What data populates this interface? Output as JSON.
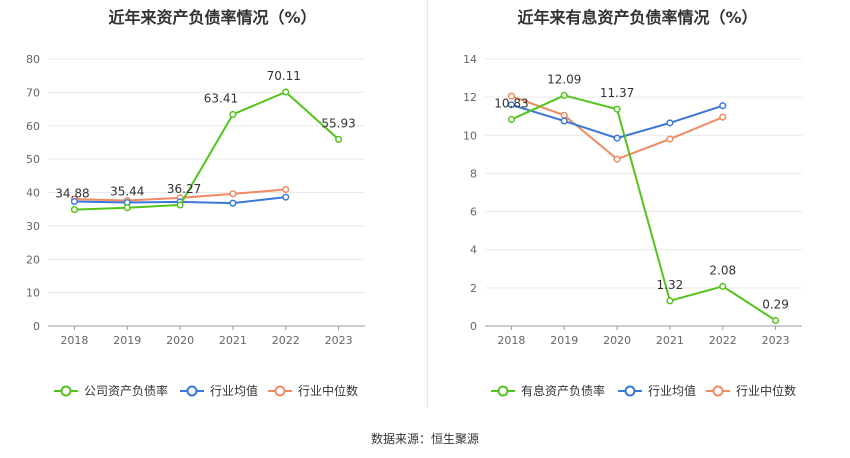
{
  "source_label": "数据来源：恒生聚源",
  "chart_data": [
    {
      "type": "line",
      "title": "近年来资产负债率情况（%）",
      "categories": [
        "2018",
        "2019",
        "2020",
        "2021",
        "2022",
        "2023"
      ],
      "ylim": [
        0,
        80
      ],
      "yticks": [
        0,
        10,
        20,
        30,
        40,
        50,
        60,
        70,
        80
      ],
      "grid": true,
      "legend_position": "bottom",
      "series": [
        {
          "name": "公司资产负债率",
          "color": "#52c41a",
          "values": [
            34.88,
            35.44,
            36.27,
            63.41,
            70.11,
            55.93
          ],
          "labels": [
            "34.88",
            "35.44",
            "36.27",
            "63.41",
            "70.11",
            "55.93"
          ]
        },
        {
          "name": "行业均值",
          "color": "#3a78d8",
          "values": [
            37.3,
            37.0,
            37.2,
            36.8,
            38.6,
            null
          ]
        },
        {
          "name": "行业中位数",
          "color": "#f08a62",
          "values": [
            38.0,
            37.6,
            38.4,
            39.6,
            40.9,
            null
          ]
        }
      ]
    },
    {
      "type": "line",
      "title": "近年来有息资产负债率情况（%）",
      "categories": [
        "2018",
        "2019",
        "2020",
        "2021",
        "2022",
        "2023"
      ],
      "ylim": [
        0,
        14
      ],
      "yticks": [
        0,
        2,
        4,
        6,
        8,
        10,
        12,
        14
      ],
      "grid": true,
      "legend_position": "bottom",
      "series": [
        {
          "name": "有息资产负债率",
          "color": "#52c41a",
          "values": [
            10.83,
            12.09,
            11.37,
            1.32,
            2.08,
            0.29
          ],
          "labels": [
            "10.83",
            "12.09",
            "11.37",
            "1.32",
            "2.08",
            "0.29"
          ]
        },
        {
          "name": "行业均值",
          "color": "#3a78d8",
          "values": [
            11.6,
            10.75,
            9.85,
            10.65,
            11.55,
            null
          ]
        },
        {
          "name": "行业中位数",
          "color": "#f08a62",
          "values": [
            12.05,
            11.05,
            8.75,
            9.8,
            10.95,
            null
          ]
        }
      ]
    }
  ]
}
